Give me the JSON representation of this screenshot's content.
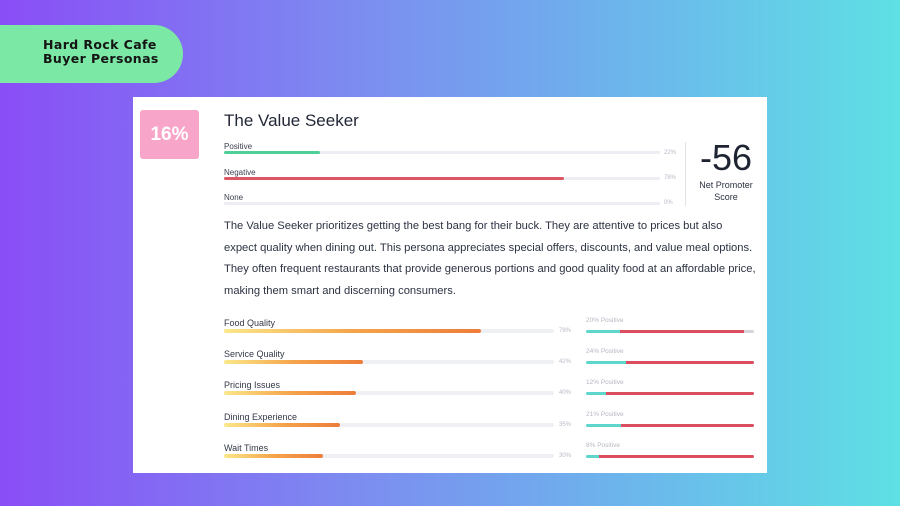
{
  "badge": {
    "line1": "Hard Rock Cafe",
    "line2": "Buyer Personas"
  },
  "persona": {
    "share": "16%",
    "title": "The Value Seeker",
    "sentiment": [
      {
        "label": "Positive",
        "pct": "22%",
        "value": 22,
        "color": "#4fcf98"
      },
      {
        "label": "Negative",
        "pct": "78%",
        "value": 78,
        "color": "#de5563"
      },
      {
        "label": "None",
        "pct": "0%",
        "value": 0,
        "color": "#cfd2d8"
      }
    ],
    "nps": {
      "value": "-56",
      "label": "Net Promoter Score"
    },
    "description": "The Value Seeker prioritizes getting the best bang for their buck. They are attentive to prices but also expect quality when dining out. This persona appreciates special offers, discounts, and value meal options. They often frequent restaurants that provide generous portions and good quality food at an affordable price, making them smart and discerning consumers.",
    "metrics": [
      {
        "label": "Food Quality",
        "pct": "78%",
        "value": 78,
        "positive_label": "20% Positive",
        "positive": 20,
        "negative": 74,
        "none": 6
      },
      {
        "label": "Service Quality",
        "pct": "42%",
        "value": 42,
        "positive_label": "24% Positive",
        "positive": 24,
        "negative": 76,
        "none": 0
      },
      {
        "label": "Pricing Issues",
        "pct": "40%",
        "value": 40,
        "positive_label": "12% Positive",
        "positive": 12,
        "negative": 88,
        "none": 0
      },
      {
        "label": "Dining Experience",
        "pct": "35%",
        "value": 35,
        "positive_label": "21% Positive",
        "positive": 21,
        "negative": 79,
        "none": 0
      },
      {
        "label": "Wait Times",
        "pct": "30%",
        "value": 30,
        "positive_label": "8% Positive",
        "positive": 8,
        "negative": 92,
        "none": 0
      }
    ]
  }
}
